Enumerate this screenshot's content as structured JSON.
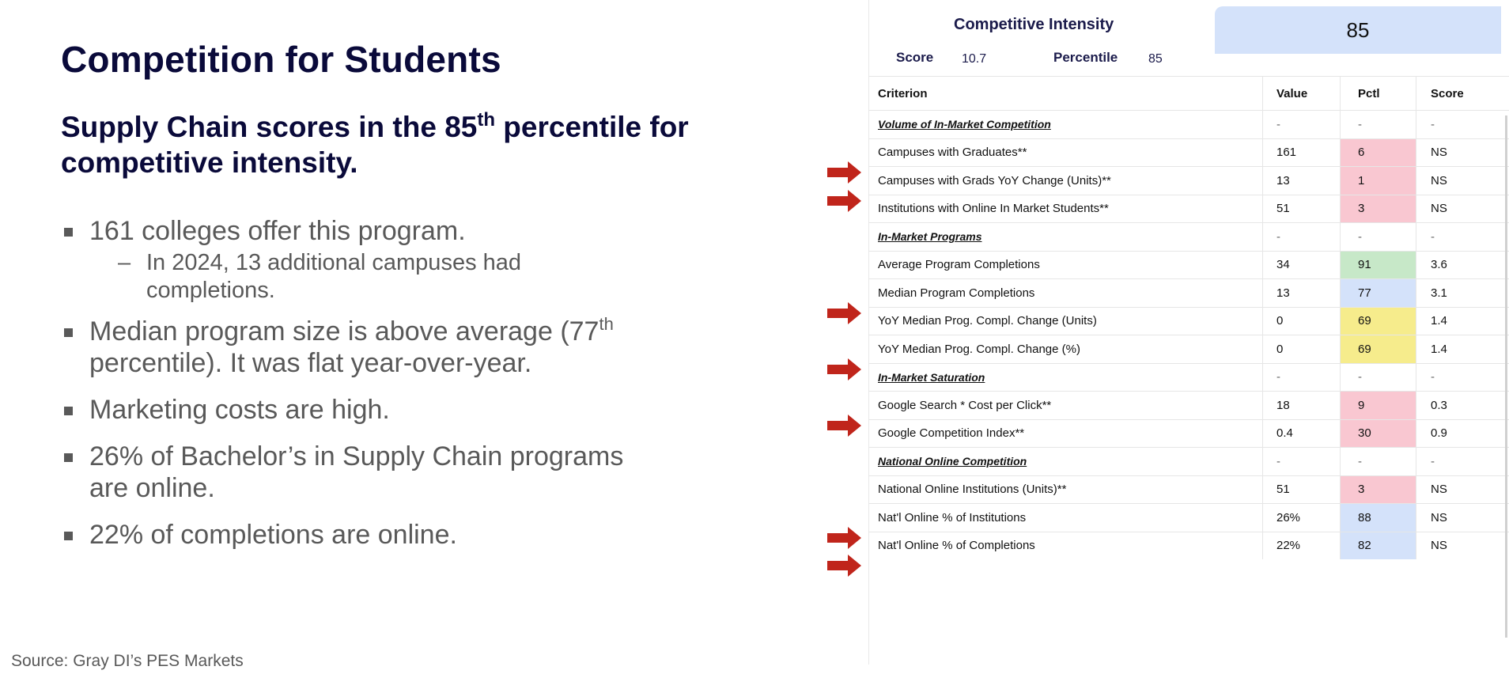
{
  "slide": {
    "title": "Competition for Students",
    "subtitle_pre": "Supply Chain scores in the 85",
    "subtitle_sup": "th",
    "subtitle_post": " percentile for competitive intensity.",
    "bullets": [
      {
        "text": "161 colleges offer this program.",
        "sub": "In 2024, 13 additional campuses had completions."
      },
      {
        "pre": "Median program size is above average (77",
        "sup": "th",
        "post": " percentile).  It was flat year-over-year."
      },
      {
        "text": "Marketing costs are high."
      },
      {
        "text": "26% of Bachelor’s in Supply Chain programs are online."
      },
      {
        "text": "22% of completions are online."
      }
    ],
    "source": "Source: Gray DI’s PES Markets"
  },
  "panel": {
    "title": "Competitive Intensity",
    "big_value": "85",
    "score_label": "Score",
    "score_value": "10.7",
    "percentile_label": "Percentile",
    "percentile_value": "85",
    "headers": [
      "Criterion",
      "Value",
      "Pctl",
      "Score"
    ],
    "rows": [
      {
        "criterion": "Volume of In-Market Competition",
        "value": "-",
        "pctl": "-",
        "score": "-",
        "section": true
      },
      {
        "criterion": "Campuses with Graduates**",
        "value": "161",
        "pctl": "6",
        "score": "NS",
        "color": "pink",
        "arrow": true
      },
      {
        "criterion": "Campuses with Grads YoY Change (Units)**",
        "value": "13",
        "pctl": "1",
        "score": "NS",
        "color": "pink",
        "arrow": true
      },
      {
        "criterion": "Institutions with Online In Market Students**",
        "value": "51",
        "pctl": "3",
        "score": "NS",
        "color": "pink"
      },
      {
        "criterion": "In-Market Programs",
        "value": "-",
        "pctl": "-",
        "score": "-",
        "section": true
      },
      {
        "criterion": "Average Program Completions",
        "value": "34",
        "pctl": "91",
        "score": "3.6",
        "color": "green"
      },
      {
        "criterion": "Median Program Completions",
        "value": "13",
        "pctl": "77",
        "score": "3.1",
        "color": "blue",
        "arrow": true
      },
      {
        "criterion": "YoY Median Prog. Compl. Change (Units)",
        "value": "0",
        "pctl": "69",
        "score": "1.4",
        "color": "yellow"
      },
      {
        "criterion": "YoY Median Prog. Compl. Change (%)",
        "value": "0",
        "pctl": "69",
        "score": "1.4",
        "color": "yellow",
        "arrow": true
      },
      {
        "criterion": "In-Market Saturation",
        "value": "-",
        "pctl": "-",
        "score": "-",
        "section": true
      },
      {
        "criterion": "Google Search * Cost per Click**",
        "value": "18",
        "pctl": "9",
        "score": "0.3",
        "color": "pink",
        "arrow": true
      },
      {
        "criterion": "Google Competition Index**",
        "value": "0.4",
        "pctl": "30",
        "score": "0.9",
        "color": "pink"
      },
      {
        "criterion": "National Online Competition",
        "value": "-",
        "pctl": "-",
        "score": "-",
        "section": true
      },
      {
        "criterion": "National Online Institutions (Units)**",
        "value": "51",
        "pctl": "3",
        "score": "NS",
        "color": "pink"
      },
      {
        "criterion": "Nat'l Online % of Institutions",
        "value": "26%",
        "pctl": "88",
        "score": "NS",
        "color": "blue",
        "arrow": true
      },
      {
        "criterion": "Nat'l Online % of Completions",
        "value": "22%",
        "pctl": "82",
        "score": "NS",
        "color": "blue",
        "arrow": true
      }
    ],
    "arrow_color": "#c0251b"
  }
}
